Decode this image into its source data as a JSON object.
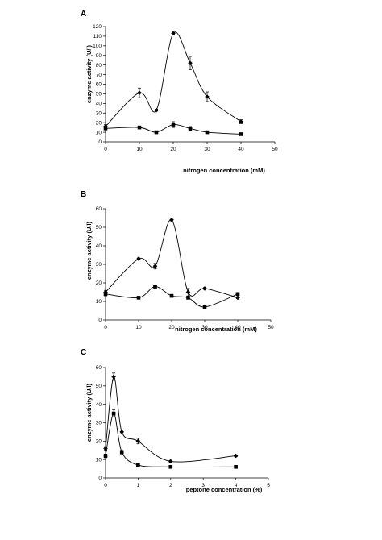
{
  "chart_data": [
    {
      "type": "line",
      "panel_label": "A",
      "xlabel": "nitrogen concentration (mM)",
      "ylabel": "enzyme activity (U/l)",
      "xlim": [
        0,
        50
      ],
      "ylim": [
        0,
        120
      ],
      "xticks": [
        0,
        10,
        20,
        30,
        40,
        50
      ],
      "yticks": [
        0,
        10,
        20,
        30,
        40,
        50,
        60,
        70,
        80,
        90,
        100,
        110,
        120
      ],
      "grid": false,
      "series": [
        {
          "marker": "diamond",
          "x": [
            0,
            10,
            15,
            20,
            25,
            30,
            40
          ],
          "y": [
            16,
            51,
            33,
            113,
            82,
            47,
            21
          ],
          "err": [
            2,
            5,
            1,
            1,
            7,
            5,
            2
          ]
        },
        {
          "marker": "square",
          "x": [
            0,
            10,
            15,
            20,
            25,
            30,
            40
          ],
          "y": [
            14,
            15,
            10,
            18,
            14,
            10,
            8
          ],
          "err": [
            1,
            1,
            1,
            3,
            2,
            1,
            1
          ]
        }
      ]
    },
    {
      "type": "line",
      "panel_label": "B",
      "xlabel": "nitrogen concentration (mM)",
      "ylabel": "enzyme activity (U/l)",
      "xlim": [
        0,
        50
      ],
      "ylim": [
        0,
        60
      ],
      "xticks": [
        0,
        10,
        20,
        30,
        40,
        50
      ],
      "yticks": [
        0,
        10,
        20,
        30,
        40,
        50,
        60
      ],
      "grid": false,
      "series": [
        {
          "marker": "diamond",
          "x": [
            0,
            10,
            15,
            20,
            25,
            30,
            40
          ],
          "y": [
            15,
            33,
            29,
            54,
            15,
            17,
            12
          ],
          "err": [
            1,
            0.5,
            1.5,
            1,
            2,
            0.5,
            0.5
          ]
        },
        {
          "marker": "square",
          "x": [
            0,
            10,
            15,
            20,
            25,
            30,
            40
          ],
          "y": [
            14,
            12,
            18,
            13,
            12,
            7,
            14
          ],
          "err": [
            1,
            0.5,
            0.5,
            0.5,
            0.5,
            0.5,
            0.5
          ]
        }
      ]
    },
    {
      "type": "line",
      "panel_label": "C",
      "xlabel": "peptone concentration (%)",
      "ylabel": "enzyme activity (U/l)",
      "xlim": [
        0,
        5
      ],
      "ylim": [
        0,
        60
      ],
      "xticks": [
        0,
        1,
        2,
        3,
        4,
        5
      ],
      "yticks": [
        0,
        10,
        20,
        30,
        40,
        50,
        60
      ],
      "grid": false,
      "series": [
        {
          "marker": "diamond",
          "x": [
            0,
            0.25,
            0.5,
            1,
            2,
            4
          ],
          "y": [
            16,
            55,
            25,
            20,
            9,
            12
          ],
          "err": [
            1,
            2,
            1,
            1.5,
            0.5,
            0.5
          ]
        },
        {
          "marker": "square",
          "x": [
            0,
            0.25,
            0.5,
            1,
            2,
            4
          ],
          "y": [
            12,
            35,
            14,
            7,
            6,
            6
          ],
          "err": [
            1,
            2,
            1,
            0.5,
            0.5,
            0.5
          ]
        }
      ]
    }
  ]
}
